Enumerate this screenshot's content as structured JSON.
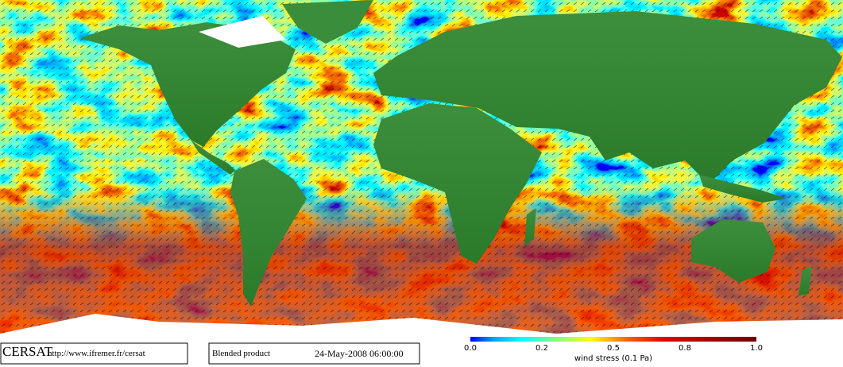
{
  "footer": {
    "logo": "CERSAT",
    "url": "http://www.ifremer.fr/cersat",
    "product": "Blended product",
    "timestamp": "24-May-2008 06:00:00"
  },
  "colorbar": {
    "ticks": [
      "0.0",
      "0.2",
      "0.5",
      "0.8",
      "1.0"
    ],
    "label": "wind stress (0.1 Pa)"
  }
}
